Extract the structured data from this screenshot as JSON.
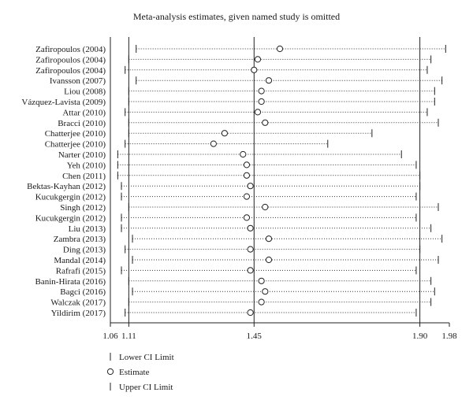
{
  "chart_data": {
    "type": "scatter",
    "title": "Meta-analysis estimates, given named study is omitted",
    "xlim": [
      1.06,
      1.98
    ],
    "x_ticks": [
      1.06,
      1.11,
      1.45,
      1.9,
      1.98
    ],
    "x_tick_labels": [
      "1.06",
      "1.11",
      "1.45",
      "1.90",
      "1.98"
    ],
    "reference_lines": [
      1.11,
      1.45,
      1.9
    ],
    "grid": false,
    "legend_position": "bottom-left",
    "legend": [
      {
        "symbol": "|",
        "label": "Lower CI Limit"
      },
      {
        "symbol": "○",
        "label": "Estimate"
      },
      {
        "symbol": "|",
        "label": "Upper CI Limit"
      }
    ],
    "studies": [
      {
        "label": "Zafiropoulos (2004)",
        "lower": 1.13,
        "estimate": 1.52,
        "upper": 1.97
      },
      {
        "label": "Zafiropoulos (2004)",
        "lower": 1.11,
        "estimate": 1.46,
        "upper": 1.93
      },
      {
        "label": "Zafiropoulos (2004)",
        "lower": 1.1,
        "estimate": 1.45,
        "upper": 1.92
      },
      {
        "label": "Ivansson (2007)",
        "lower": 1.13,
        "estimate": 1.49,
        "upper": 1.96
      },
      {
        "label": "Liou (2008)",
        "lower": 1.11,
        "estimate": 1.47,
        "upper": 1.94
      },
      {
        "label": "Vázquez-Lavista (2009)",
        "lower": 1.11,
        "estimate": 1.47,
        "upper": 1.94
      },
      {
        "label": "Attar (2010)",
        "lower": 1.1,
        "estimate": 1.46,
        "upper": 1.92
      },
      {
        "label": "Bracci (2010)",
        "lower": 1.11,
        "estimate": 1.48,
        "upper": 1.95
      },
      {
        "label": "Chatterjee (2010)",
        "lower": 1.11,
        "estimate": 1.37,
        "upper": 1.77
      },
      {
        "label": "Chatterjee (2010)",
        "lower": 1.1,
        "estimate": 1.34,
        "upper": 1.65
      },
      {
        "label": "Narter (2010)",
        "lower": 1.08,
        "estimate": 1.42,
        "upper": 1.85
      },
      {
        "label": "Yeh (2010)",
        "lower": 1.08,
        "estimate": 1.43,
        "upper": 1.89
      },
      {
        "label": "Chen (2011)",
        "lower": 1.08,
        "estimate": 1.43,
        "upper": 1.9
      },
      {
        "label": "Bektas-Kayhan (2012)",
        "lower": 1.09,
        "estimate": 1.44,
        "upper": 1.9
      },
      {
        "label": "Kucukgergin (2012)",
        "lower": 1.09,
        "estimate": 1.43,
        "upper": 1.89
      },
      {
        "label": "Singh (2012)",
        "lower": 1.11,
        "estimate": 1.48,
        "upper": 1.95
      },
      {
        "label": "Kucukgergin (2012)",
        "lower": 1.09,
        "estimate": 1.43,
        "upper": 1.89
      },
      {
        "label": "Liu (2013)",
        "lower": 1.09,
        "estimate": 1.44,
        "upper": 1.93
      },
      {
        "label": "Zambra (2013)",
        "lower": 1.12,
        "estimate": 1.49,
        "upper": 1.96
      },
      {
        "label": "Ding (2013)",
        "lower": 1.1,
        "estimate": 1.44,
        "upper": 1.9
      },
      {
        "label": "Mandal (2014)",
        "lower": 1.12,
        "estimate": 1.49,
        "upper": 1.95
      },
      {
        "label": "Rafrafi (2015)",
        "lower": 1.09,
        "estimate": 1.44,
        "upper": 1.89
      },
      {
        "label": "Banin-Hirata (2016)",
        "lower": 1.11,
        "estimate": 1.47,
        "upper": 1.93
      },
      {
        "label": "Bagci (2016)",
        "lower": 1.12,
        "estimate": 1.48,
        "upper": 1.94
      },
      {
        "label": "Walczak (2017)",
        "lower": 1.11,
        "estimate": 1.47,
        "upper": 1.93
      },
      {
        "label": "Yildirim (2017)",
        "lower": 1.1,
        "estimate": 1.44,
        "upper": 1.89
      }
    ]
  }
}
